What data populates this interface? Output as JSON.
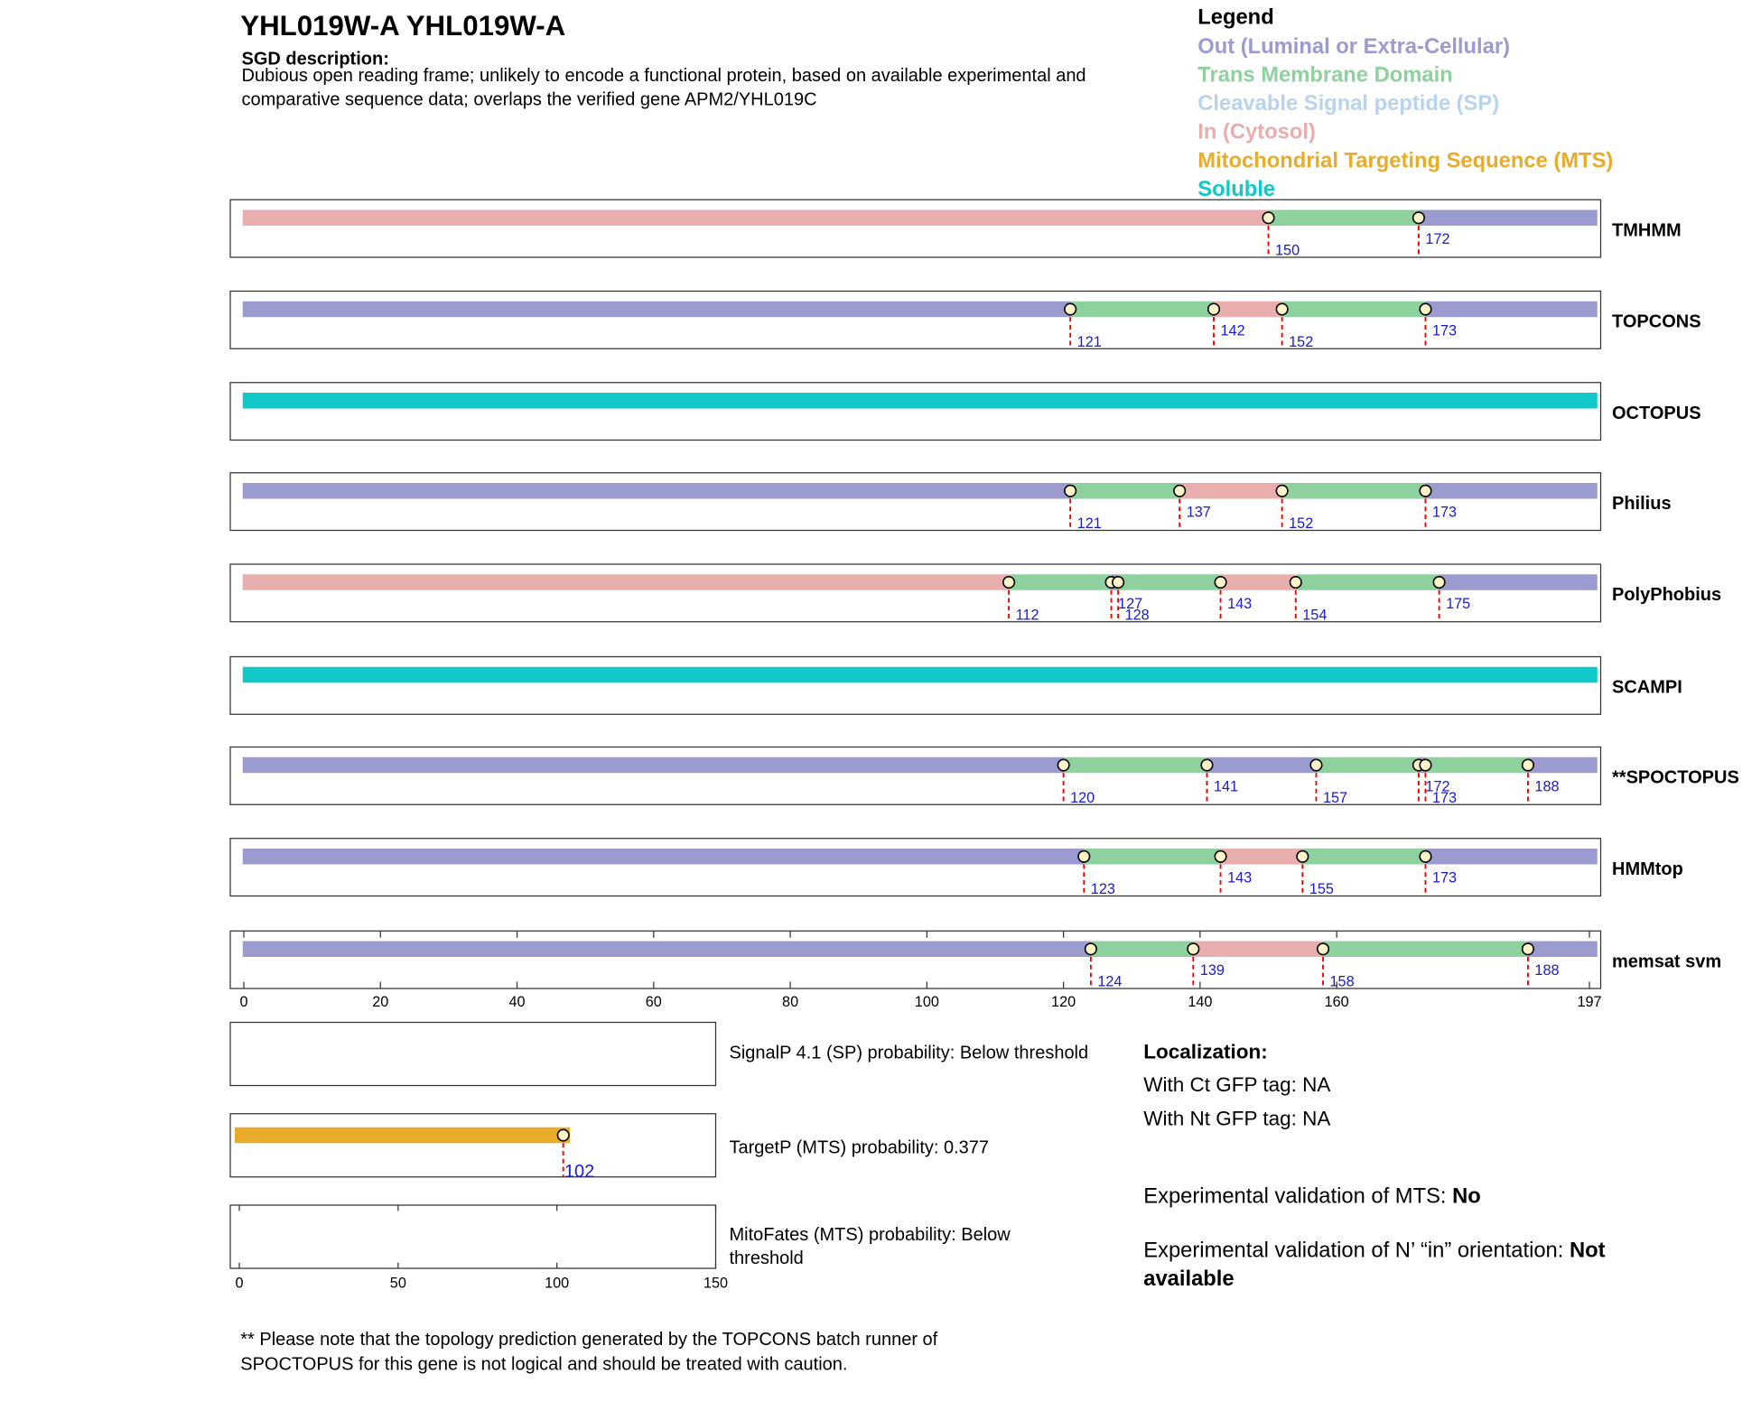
{
  "header": {
    "title": "YHL019W-A  YHL019W-A",
    "desc_label": "SGD description:",
    "description": [
      "Dubious open reading frame; unlikely to encode a functional protein, based on available experimental and",
      "comparative sequence data; overlaps the verified gene APM2/YHL019C"
    ]
  },
  "legend": {
    "title": "Legend",
    "items": [
      {
        "label": "Out (Luminal or Extra-Cellular)",
        "color": "#9b9bcf"
      },
      {
        "label": "Trans Membrane Domain",
        "color": "#8fd19e"
      },
      {
        "label": "Cleavable Signal peptide (SP)",
        "color": "#b7d3ee"
      },
      {
        "label": "In (Cytosol)",
        "color": "#e8aeae"
      },
      {
        "label": "Mitochondrial Targeting Sequence (MTS)",
        "color": "#e8ac2a"
      },
      {
        "label": "Soluble",
        "color": "#10c8c8"
      }
    ]
  },
  "xlim": [
    0,
    197
  ],
  "xticks": [
    0,
    20,
    40,
    60,
    80,
    100,
    120,
    140,
    160,
    197
  ],
  "tracks": [
    {
      "name": "TMHMM",
      "boundaries": [
        150,
        172
      ],
      "regions": [
        "#e8aeae",
        "#8fd19e",
        "#9b9bcf"
      ]
    },
    {
      "name": "TOPCONS",
      "boundaries": [
        121,
        142,
        152,
        173
      ],
      "regions": [
        "#9b9bcf",
        "#8fd19e",
        "#e8aeae",
        "#8fd19e",
        "#9b9bcf"
      ]
    },
    {
      "name": "OCTOPUS",
      "boundaries": [],
      "regions": [
        "#10c8c8"
      ]
    },
    {
      "name": "Philius",
      "boundaries": [
        121,
        137,
        152,
        173
      ],
      "regions": [
        "#9b9bcf",
        "#8fd19e",
        "#e8aeae",
        "#8fd19e",
        "#9b9bcf"
      ]
    },
    {
      "name": "PolyPhobius",
      "boundaries": [
        112,
        127,
        128,
        143,
        154,
        175
      ],
      "regions": [
        "#e8aeae",
        "#8fd19e",
        "#9b9bcf",
        "#8fd19e",
        "#e8aeae",
        "#8fd19e",
        "#9b9bcf"
      ]
    },
    {
      "name": "SCAMPI",
      "boundaries": [],
      "regions": [
        "#10c8c8"
      ]
    },
    {
      "name": "**SPOCTOPUS",
      "boundaries": [
        120,
        141,
        157,
        172,
        173,
        188
      ],
      "regions": [
        "#9b9bcf",
        "#8fd19e",
        "#9b9bcf",
        "#8fd19e",
        "#9b9bcf",
        "#8fd19e",
        "#9b9bcf"
      ]
    },
    {
      "name": "HMMtop",
      "boundaries": [
        123,
        143,
        155,
        173
      ],
      "regions": [
        "#9b9bcf",
        "#8fd19e",
        "#e8aeae",
        "#8fd19e",
        "#9b9bcf"
      ]
    },
    {
      "name": "memsat svm",
      "boundaries": [
        124,
        139,
        158,
        188
      ],
      "regions": [
        "#9b9bcf",
        "#8fd19e",
        "#e8aeae",
        "#8fd19e",
        "#9b9bcf"
      ]
    }
  ],
  "mts": {
    "xlim": [
      0,
      150
    ],
    "xticks": [
      0,
      50,
      100,
      150
    ],
    "signalp": "SignalP 4.1 (SP) probability: Below threshold",
    "targetp": {
      "text": "TargetP (MTS) probability: 0.377",
      "boundary": 102,
      "color": "#e8ac2a"
    },
    "mitofates": [
      "MitoFates (MTS) probability: Below",
      "threshold"
    ]
  },
  "localization": {
    "title": "Localization:",
    "lines": [
      "With Ct GFP tag: NA",
      "With Nt GFP tag: NA"
    ]
  },
  "validation": [
    {
      "label": "Experimental validation of MTS: ",
      "value": "No"
    },
    {
      "label": "Experimental validation of N’ “in” orientation: ",
      "value": [
        "Not",
        "available"
      ]
    }
  ],
  "footnote": [
    "** Please note that the topology prediction generated by the TOPCONS batch runner of",
    "SPOCTOPUS for this gene is not logical and should be treated with caution."
  ]
}
